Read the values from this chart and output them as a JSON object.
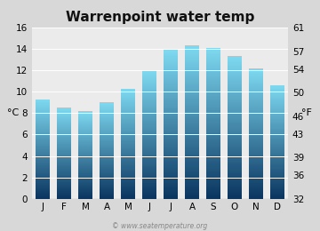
{
  "title": "Warrenpoint water temp",
  "months": [
    "J",
    "F",
    "M",
    "A",
    "M",
    "J",
    "J",
    "A",
    "S",
    "O",
    "N",
    "D"
  ],
  "values_c": [
    9.3,
    8.5,
    8.2,
    9.0,
    10.3,
    12.0,
    13.9,
    14.3,
    14.1,
    13.3,
    12.2,
    10.6
  ],
  "ylim_c": [
    0,
    16
  ],
  "yticks_c": [
    0,
    2,
    4,
    6,
    8,
    10,
    12,
    14,
    16
  ],
  "yticks_f": [
    32,
    36,
    39,
    43,
    46,
    50,
    54,
    57,
    61
  ],
  "ylabel_left": "°C",
  "ylabel_right": "°F",
  "bg_color": "#d8d8d8",
  "plot_bg_color": "#ebebeb",
  "bar_color_top": "#7dd8f0",
  "bar_color_bottom": "#0a3560",
  "watermark": "© www.seatemperature.org",
  "title_fontsize": 11,
  "tick_fontsize": 7.5,
  "label_fontsize": 8,
  "watermark_fontsize": 5.5
}
